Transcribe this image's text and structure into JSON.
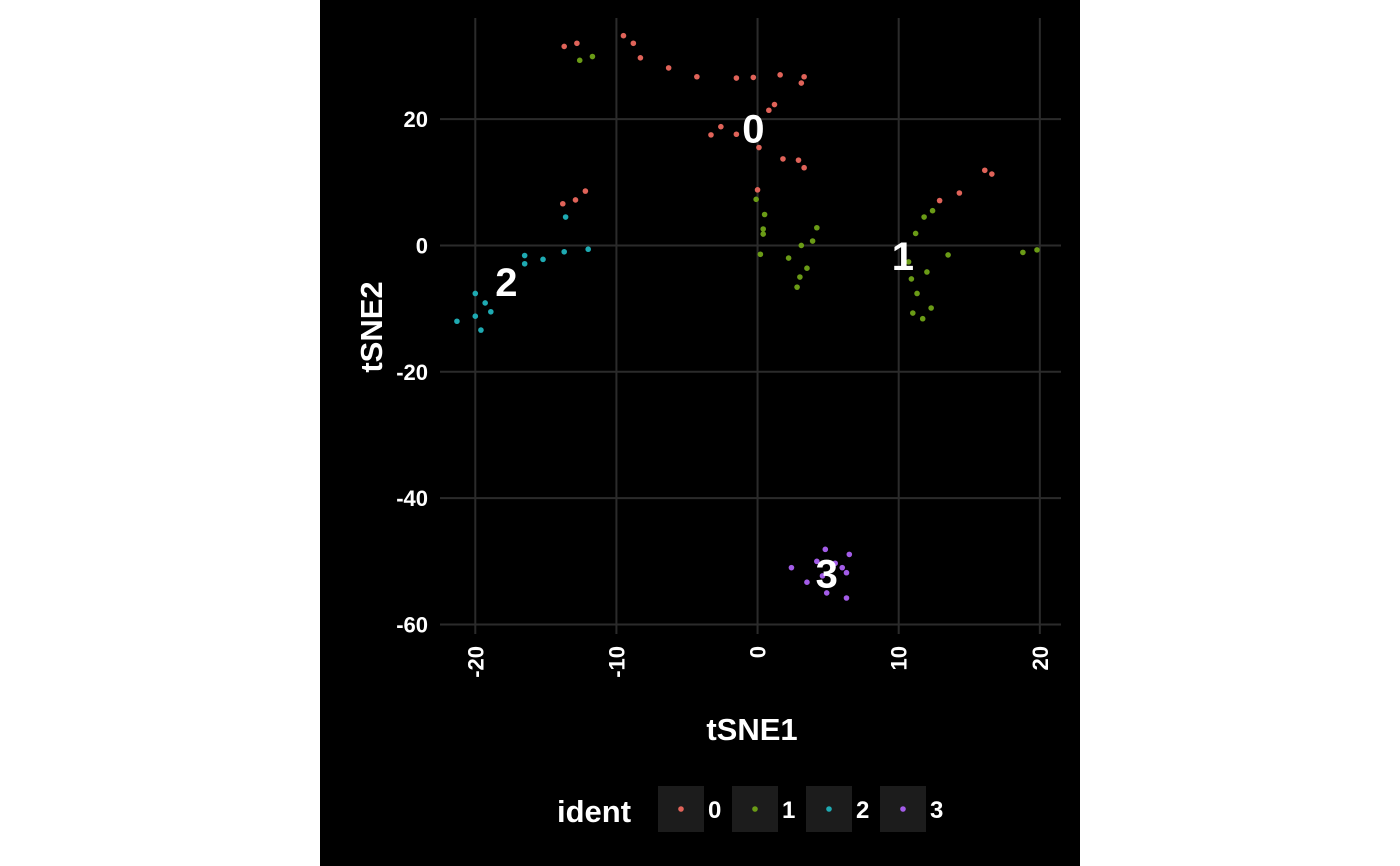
{
  "chart_data": {
    "type": "scatter",
    "title": "",
    "xlabel": "tSNE1",
    "ylabel": "tSNE2",
    "xlim": [
      -22.5,
      21.5
    ],
    "ylim": [
      -61.5,
      36
    ],
    "x_ticks": [
      -20,
      -10,
      0,
      10,
      20
    ],
    "x_tick_labels": [
      "-20",
      "-10",
      "0",
      "10",
      "20"
    ],
    "y_ticks": [
      20,
      0,
      -20,
      -40,
      -60
    ],
    "y_tick_labels": [
      "20",
      "0",
      "-20",
      "-40",
      "-60"
    ],
    "grid": true,
    "legend": {
      "title": "ident",
      "position": "bottom"
    },
    "series": [
      {
        "name": "0",
        "color": "#e06359",
        "points": [
          [
            -13.7,
            31.5
          ],
          [
            -12.8,
            32.0
          ],
          [
            -9.5,
            33.2
          ],
          [
            -8.8,
            32.0
          ],
          [
            -8.3,
            29.7
          ],
          [
            -6.3,
            28.1
          ],
          [
            -4.3,
            26.7
          ],
          [
            -1.5,
            26.5
          ],
          [
            -0.3,
            26.6
          ],
          [
            1.6,
            27.0
          ],
          [
            3.1,
            25.7
          ],
          [
            3.3,
            26.7
          ],
          [
            1.2,
            22.3
          ],
          [
            0.8,
            21.4
          ],
          [
            -3.3,
            17.5
          ],
          [
            -2.6,
            18.8
          ],
          [
            -1.5,
            17.6
          ],
          [
            0.1,
            15.5
          ],
          [
            1.8,
            13.7
          ],
          [
            2.9,
            13.5
          ],
          [
            3.3,
            12.3
          ],
          [
            0.0,
            8.8
          ],
          [
            -13.8,
            6.6
          ],
          [
            -12.9,
            7.2
          ],
          [
            -12.2,
            8.6
          ],
          [
            12.9,
            7.1
          ],
          [
            14.3,
            8.3
          ],
          [
            16.1,
            11.9
          ],
          [
            16.6,
            11.3
          ]
        ]
      },
      {
        "name": "1",
        "color": "#6a9b16",
        "points": [
          [
            -12.6,
            29.3
          ],
          [
            -11.7,
            29.9
          ],
          [
            -0.1,
            7.3
          ],
          [
            0.5,
            4.9
          ],
          [
            0.4,
            2.6
          ],
          [
            0.4,
            1.8
          ],
          [
            0.2,
            -1.4
          ],
          [
            4.2,
            2.8
          ],
          [
            3.9,
            0.7
          ],
          [
            3.1,
            0.0
          ],
          [
            3.5,
            -3.6
          ],
          [
            2.2,
            -2.0
          ],
          [
            3.0,
            -5.0
          ],
          [
            2.8,
            -6.6
          ],
          [
            11.8,
            4.5
          ],
          [
            12.4,
            5.5
          ],
          [
            11.2,
            1.9
          ],
          [
            10.7,
            -2.6
          ],
          [
            10.9,
            -5.3
          ],
          [
            11.3,
            -7.6
          ],
          [
            12.0,
            -4.2
          ],
          [
            13.5,
            -1.5
          ],
          [
            12.3,
            -9.9
          ],
          [
            11.0,
            -10.7
          ],
          [
            11.7,
            -11.6
          ],
          [
            18.8,
            -1.1
          ],
          [
            19.8,
            -0.7
          ]
        ]
      },
      {
        "name": "2",
        "color": "#1eaab2",
        "points": [
          [
            -13.6,
            4.5
          ],
          [
            -13.7,
            -1.0
          ],
          [
            -12.0,
            -0.6
          ],
          [
            -16.5,
            -1.6
          ],
          [
            -16.5,
            -2.9
          ],
          [
            -15.2,
            -2.2
          ],
          [
            -20.0,
            -7.6
          ],
          [
            -19.3,
            -9.1
          ],
          [
            -18.9,
            -10.5
          ],
          [
            -20.0,
            -11.2
          ],
          [
            -19.6,
            -13.4
          ],
          [
            -21.3,
            -12.0
          ]
        ]
      },
      {
        "name": "3",
        "color": "#a35ce8",
        "points": [
          [
            4.8,
            -48.1
          ],
          [
            6.5,
            -48.9
          ],
          [
            4.2,
            -50.0
          ],
          [
            5.5,
            -50.3
          ],
          [
            6.0,
            -51.0
          ],
          [
            2.4,
            -51.0
          ],
          [
            6.3,
            -51.8
          ],
          [
            4.6,
            -52.3
          ],
          [
            3.5,
            -53.3
          ],
          [
            4.9,
            -55.0
          ],
          [
            6.3,
            -55.8
          ]
        ]
      }
    ],
    "cluster_labels": [
      {
        "text": "0",
        "x": -0.3,
        "y": 18.5
      },
      {
        "text": "1",
        "x": 10.3,
        "y": -1.7
      },
      {
        "text": "2",
        "x": -17.8,
        "y": -5.8
      },
      {
        "text": "3",
        "x": 4.9,
        "y": -51.9
      }
    ]
  }
}
